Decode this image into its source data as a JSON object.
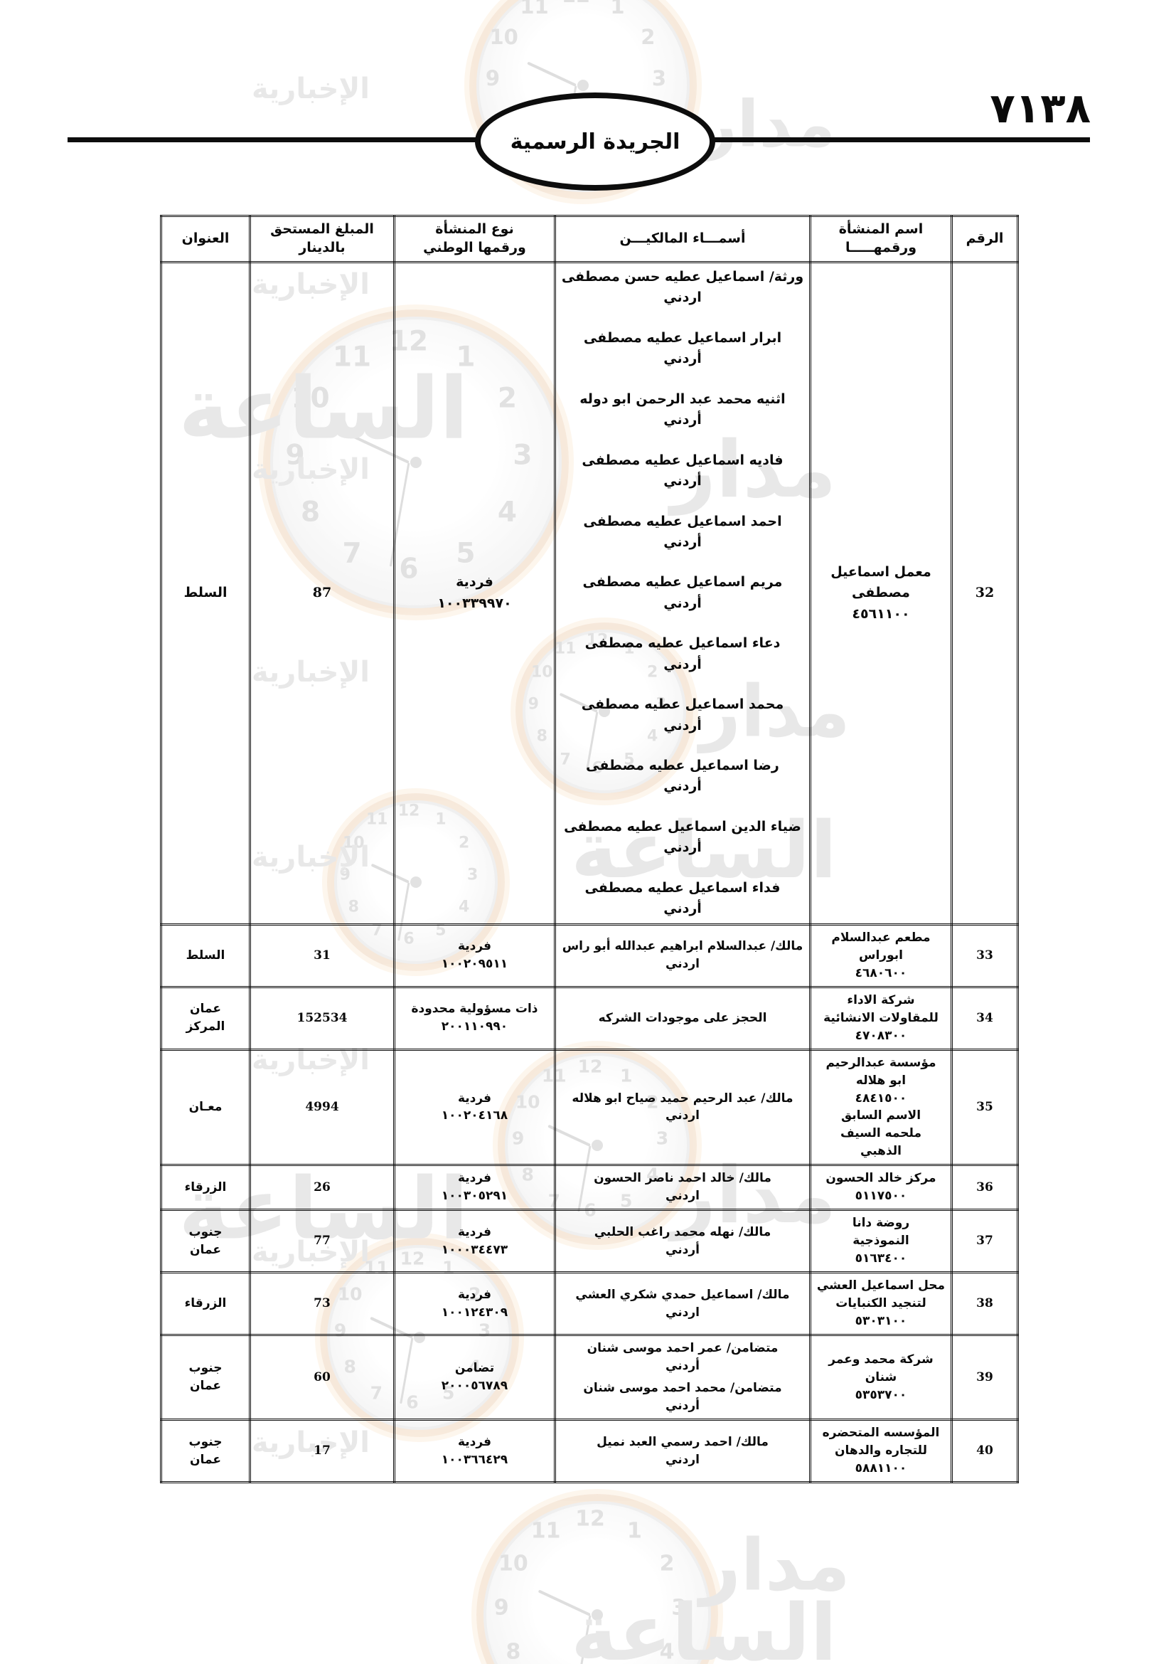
{
  "page": {
    "number_arabic": "٧١٣٨"
  },
  "masthead": {
    "title": "الجريدة الرسمية"
  },
  "watermark": {
    "words": [
      "مدار",
      "الساعة",
      "الإخبارية"
    ],
    "clock_numerals": [
      "12",
      "1",
      "2",
      "3",
      "4",
      "5",
      "6",
      "7",
      "8",
      "9",
      "10",
      "11"
    ]
  },
  "table": {
    "headers": {
      "no": "الرقم",
      "establishment": "اسم المنشأة\nورقمهـــــا",
      "owners": "أسمـــاء المالكيـــن",
      "type": "نوع المنشأة\nورقمها الوطني",
      "amount": "المبلغ المستحق\nبالدينار",
      "address": "العنوان"
    },
    "rows": [
      {
        "no": "32",
        "establishment_lines": [
          "معمل اسماعيل",
          "مصطفى",
          "٤٥٦١١٠٠"
        ],
        "owners": [
          {
            "name": "ورثة/ اسماعيل عطيه حسن مصطفى",
            "nationality": "اردني"
          },
          {
            "name": "ابرار اسماعيل عطيه مصطفى",
            "nationality": "أردني"
          },
          {
            "name": "اثنيه محمد عبد الرحمن ابو دوله",
            "nationality": "أردني"
          },
          {
            "name": "فاديه اسماعيل عطيه مصطفى",
            "nationality": "أردني"
          },
          {
            "name": "احمد اسماعيل عطيه مصطفى",
            "nationality": "أردني"
          },
          {
            "name": "مريم اسماعيل عطيه مصطفى",
            "nationality": "أردني"
          },
          {
            "name": "دعاء اسماعيل عطيه مصطفى",
            "nationality": "أردني"
          },
          {
            "name": "محمد اسماعيل عطيه مصطفى",
            "nationality": "أردني"
          },
          {
            "name": "رضا اسماعيل عطيه مصطفى",
            "nationality": "أردني"
          },
          {
            "name": "ضياء الدين اسماعيل عطيه مصطفى",
            "nationality": "أردني"
          },
          {
            "name": "فداء اسماعيل عطيه مصطفى",
            "nationality": "أردني"
          }
        ],
        "type_lines": [
          "فردية",
          "١٠٠٣٣٩٩٧٠"
        ],
        "amount": "87",
        "address_lines": [
          "السلط"
        ]
      },
      {
        "no": "33",
        "establishment_lines": [
          "مطعم عبدالسلام",
          "ابوراس",
          "٤٦٨٠٦٠٠"
        ],
        "owners": [
          {
            "name": "مالك/ عبدالسلام ابراهيم عبدالله أبو راس",
            "nationality": "اردني"
          }
        ],
        "type_lines": [
          "فردية",
          "١٠٠٢٠٩٥١١"
        ],
        "amount": "31",
        "address_lines": [
          "السلط"
        ]
      },
      {
        "no": "34",
        "establishment_lines": [
          "شركة الاداء",
          "للمقاولات الانشائية",
          "٤٧٠٨٣٠٠"
        ],
        "owners": [
          {
            "name": "الحجز على موجودات الشركه",
            "nationality": ""
          }
        ],
        "type_lines": [
          "ذات مسؤولية محدودة",
          "٢٠٠١١٠٩٩٠"
        ],
        "amount": "152534",
        "address_lines": [
          "عمان",
          "المركز"
        ]
      },
      {
        "no": "35",
        "establishment_lines": [
          "مؤسسة عبدالرحيم",
          "ابو هلاله",
          "٤٨٤١٥٠٠",
          "الاسم السابق",
          "ملحمه السيف",
          "الذهبي"
        ],
        "owners": [
          {
            "name": "مالك/ عبد الرحيم حميد صياح ابو هلاله",
            "nationality": "اردني"
          }
        ],
        "type_lines": [
          "فردية",
          "١٠٠٢٠٤١٦٨"
        ],
        "amount": "4994",
        "address_lines": [
          "معـان"
        ]
      },
      {
        "no": "36",
        "establishment_lines": [
          "مركز خالد الحسون",
          "٥١١٧٥٠٠"
        ],
        "owners": [
          {
            "name": "مالك/ خالد احمد ناصر الحسون",
            "nationality": "اردني"
          }
        ],
        "type_lines": [
          "فردية",
          "١٠٠٣٠٥٢٩١"
        ],
        "amount": "26",
        "address_lines": [
          "الزرقاء"
        ]
      },
      {
        "no": "37",
        "establishment_lines": [
          "روضة دانا",
          "النموذجية",
          "٥١٦٣٤٠٠"
        ],
        "owners": [
          {
            "name": "مالك/ نهله محمد راغب الحلبي",
            "nationality": "أردني"
          }
        ],
        "type_lines": [
          "فردية",
          "١٠٠٠٣٤٤٧٣"
        ],
        "amount": "77",
        "address_lines": [
          "جنوب",
          "عمان"
        ]
      },
      {
        "no": "38",
        "establishment_lines": [
          "محل اسماعيل العشي",
          "لتنجيد الكنبايات",
          "٥٣٠٣١٠٠"
        ],
        "owners": [
          {
            "name": "مالك/ اسماعيل حمدي شكري العشي",
            "nationality": "اردني"
          }
        ],
        "type_lines": [
          "فردية",
          "١٠٠١٢٤٣٠٩"
        ],
        "amount": "73",
        "address_lines": [
          "الزرقاء"
        ]
      },
      {
        "no": "39",
        "establishment_lines": [
          "شركة محمد وعمر",
          "شنان",
          "٥٣٥٣٧٠٠"
        ],
        "owners": [
          {
            "name": "متضامن/ عمر احمد موسى شنان",
            "nationality": "أردني"
          },
          {
            "name": "متضامن/ محمد احمد موسى شنان",
            "nationality": "أردني"
          }
        ],
        "type_lines": [
          "تضامن",
          "٢٠٠٠٥٦٧٨٩"
        ],
        "amount": "60",
        "address_lines": [
          "جنوب",
          "عمان"
        ]
      },
      {
        "no": "40",
        "establishment_lines": [
          "المؤسسه المتحضره",
          "للتجاره والدهان",
          "٥٨٨١١٠٠"
        ],
        "owners": [
          {
            "name": "مالك/ احمد رسمي العبد نميل",
            "nationality": "اردني"
          }
        ],
        "type_lines": [
          "فردية",
          "١٠٠٣٦٦٤٢٩"
        ],
        "amount": "17",
        "address_lines": [
          "جنوب",
          "عمان"
        ]
      }
    ]
  }
}
